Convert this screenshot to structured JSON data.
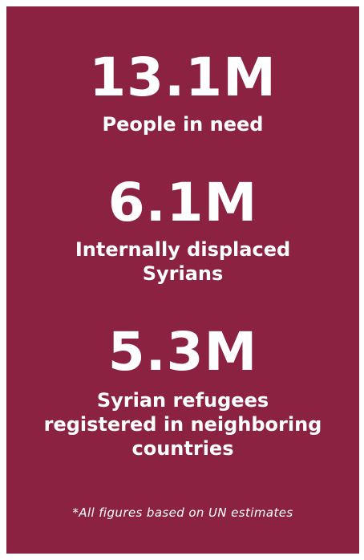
{
  "stats": [
    {
      "value": "13.1M",
      "label": "People in need"
    },
    {
      "value": "6.1M",
      "label": "Internally displaced Syrians"
    },
    {
      "value": "5.3M",
      "label": "Syrian refugees registered in neighboring countries"
    }
  ],
  "footnote": "*All figures based on UN estimates",
  "colors": {
    "background": "#8b2242",
    "text": "#ffffff"
  }
}
